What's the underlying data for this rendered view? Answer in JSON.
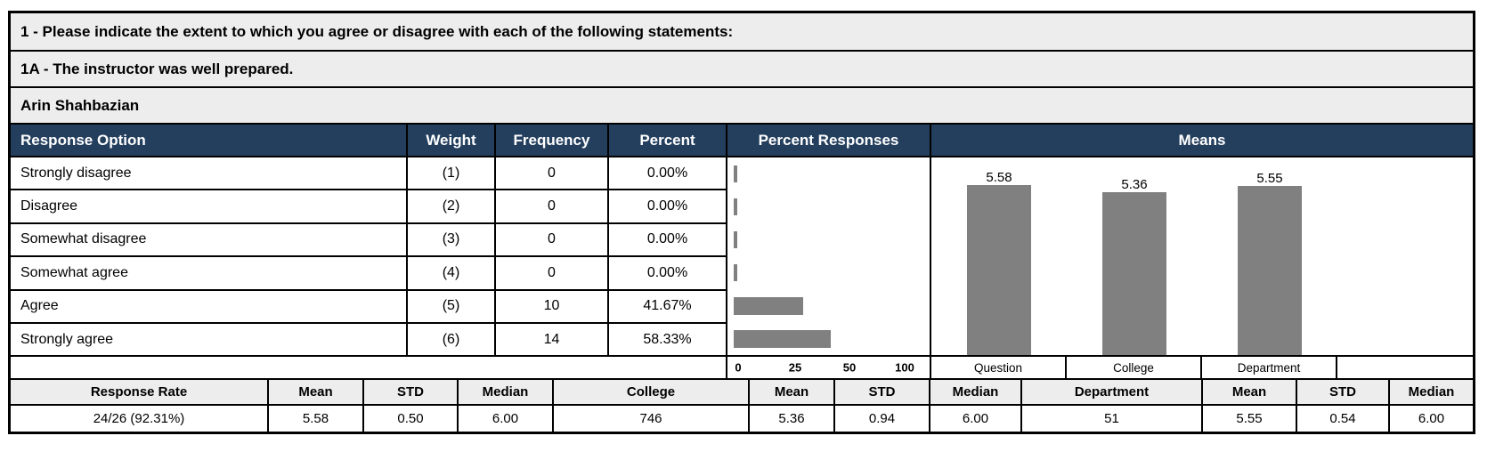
{
  "titles": {
    "question": "1 - Please indicate the extent to which you agree or disagree with each of the following statements:",
    "sub_question": "1A - The instructor was well prepared.",
    "instructor": "Arin Shahbazian"
  },
  "table": {
    "headers": {
      "response_option": "Response Option",
      "weight": "Weight",
      "frequency": "Frequency",
      "percent": "Percent",
      "percent_responses": "Percent Responses",
      "means": "Means"
    },
    "rows": [
      {
        "option": "Strongly disagree",
        "weight": "(1)",
        "frequency": "0",
        "percent": "0.00%"
      },
      {
        "option": "Disagree",
        "weight": "(2)",
        "frequency": "0",
        "percent": "0.00%"
      },
      {
        "option": "Somewhat disagree",
        "weight": "(3)",
        "frequency": "0",
        "percent": "0.00%"
      },
      {
        "option": "Somewhat agree",
        "weight": "(4)",
        "frequency": "0",
        "percent": "0.00%"
      },
      {
        "option": "Agree",
        "weight": "(5)",
        "frequency": "10",
        "percent": "41.67%"
      },
      {
        "option": "Strongly agree",
        "weight": "(6)",
        "frequency": "14",
        "percent": "58.33%"
      }
    ]
  },
  "chart_data": [
    {
      "type": "bar",
      "title": "Percent Responses",
      "orientation": "horizontal",
      "categories": [
        "Strongly disagree",
        "Disagree",
        "Somewhat disagree",
        "Somewhat agree",
        "Agree",
        "Strongly agree"
      ],
      "values": [
        0,
        0,
        0,
        0,
        41.67,
        58.33
      ],
      "xlim": [
        0,
        100
      ],
      "xticks": [
        "0",
        "25",
        "50",
        "100"
      ],
      "bar_color": "#808080",
      "grid": false
    },
    {
      "type": "bar",
      "title": "Means",
      "categories": [
        "Question",
        "College",
        "Department"
      ],
      "values": [
        5.58,
        5.36,
        5.55
      ],
      "data_labels": [
        "5.58",
        "5.36",
        "5.55"
      ],
      "ylim": [
        0,
        6
      ],
      "bar_color": "#808080",
      "grid": false
    }
  ],
  "summary": {
    "headers": [
      "Response Rate",
      "Mean",
      "STD",
      "Median",
      "College",
      "Mean",
      "STD",
      "Median",
      "Department",
      "Mean",
      "STD",
      "Median"
    ],
    "values": [
      "24/26 (92.31%)",
      "5.58",
      "0.50",
      "6.00",
      "746",
      "5.36",
      "0.94",
      "6.00",
      "51",
      "5.55",
      "0.54",
      "6.00"
    ]
  },
  "colors": {
    "header_bg": "#243F5E",
    "header_text": "#FFFFFF",
    "title_row_bg": "#EDEDED",
    "bar": "#808080",
    "border": "#000000"
  }
}
